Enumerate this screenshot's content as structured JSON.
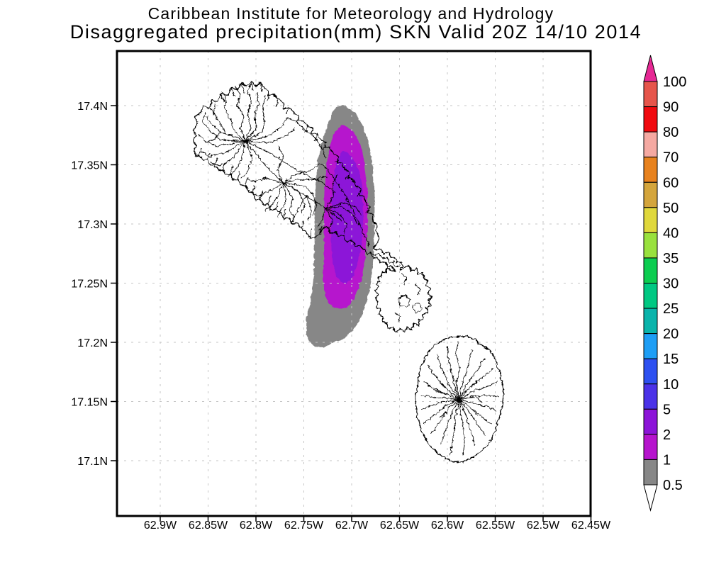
{
  "title": {
    "line1": "Caribbean Institute for Meteorology and Hydrology",
    "line2": "Disaggregated precipitation(mm) SKN Valid 20Z 14/10 2014"
  },
  "axes": {
    "x_tick_labels": [
      "62.9W",
      "62.85W",
      "62.8W",
      "62.75W",
      "62.7W",
      "62.65W",
      "62.6W",
      "62.55W",
      "62.5W",
      "62.45W"
    ],
    "y_tick_labels": [
      "17.4N",
      "17.35N",
      "17.3N",
      "17.25N",
      "17.2N",
      "17.15N",
      "17.1N"
    ]
  },
  "colorbar": {
    "tick_labels": [
      "100",
      "90",
      "80",
      "70",
      "60",
      "50",
      "40",
      "35",
      "30",
      "25",
      "20",
      "15",
      "10",
      "5",
      "2",
      "1",
      "0.5"
    ],
    "segment_colors_top_to_bottom": [
      "#e6554b",
      "#f00a0f",
      "#f5a9a2",
      "#e8821e",
      "#d4a53c",
      "#e0d83c",
      "#99e13e",
      "#0ccd50",
      "#00c882",
      "#0ab4ab",
      "#1e9ef5",
      "#2d50f0",
      "#4b32e8",
      "#8c14d8",
      "#b614cd",
      "#878787"
    ],
    "above_max_color": "#e62894",
    "below_min_color": "#ffffff",
    "outline_color": "#000000"
  },
  "map_colors": {
    "grid": "#c6c6c6",
    "coast": "#000000",
    "frame": "#000000",
    "background": "#ffffff"
  },
  "chart_data": {
    "type": "contour_map",
    "title": "Caribbean Institute for Meteorology and Hydrology",
    "subtitle": "Disaggregated precipitation(mm) SKN Valid 20Z 14/10 2014",
    "units": "mm",
    "region": "SKN",
    "valid_time": "20Z 14/10 2014",
    "lon_axis": {
      "tick_labels_deg_w": [
        62.9,
        62.85,
        62.8,
        62.75,
        62.7,
        62.65,
        62.6,
        62.55,
        62.5,
        62.45
      ],
      "range_deg_w": [
        62.945,
        62.45
      ]
    },
    "lat_axis": {
      "tick_labels_deg_n": [
        17.4,
        17.35,
        17.3,
        17.25,
        17.2,
        17.15,
        17.1
      ],
      "range_deg_n": [
        17.05,
        17.45
      ]
    },
    "contour_levels_mm": [
      0.5,
      1,
      2,
      5,
      10,
      15,
      20,
      25,
      30,
      35,
      40,
      50,
      60,
      70,
      80,
      90,
      100
    ],
    "legend_position": "right",
    "grid": "dashed",
    "shaded_regions": [
      {
        "level_mm": "0.5-1",
        "color": "#878787",
        "lon_w_extent": [
          62.748,
          62.677
        ],
        "lat_n_extent": [
          17.197,
          17.401
        ]
      },
      {
        "level_mm": "1-2",
        "color": "#b614cd",
        "lon_w_extent": [
          62.735,
          62.683
        ],
        "lat_n_extent": [
          17.23,
          17.384
        ]
      },
      {
        "level_mm": "2-5",
        "color": "#8c14d8",
        "lon_w_extent": [
          62.723,
          62.69
        ],
        "lat_n_extent": [
          17.252,
          17.361
        ]
      }
    ],
    "max_category_mm": "2-5"
  }
}
